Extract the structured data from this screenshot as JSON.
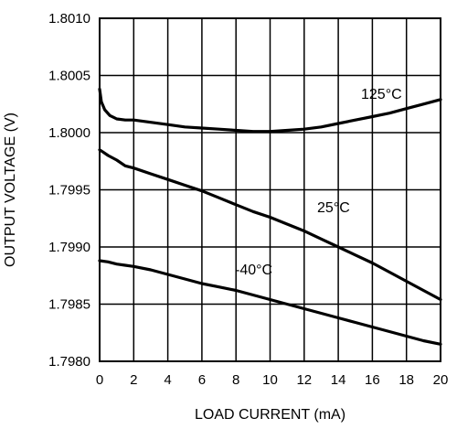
{
  "chart_data": {
    "type": "line",
    "xlabel": "LOAD CURRENT (mA)",
    "ylabel": "OUTPUT VOLTAGE (V)",
    "xlim": [
      0,
      20
    ],
    "ylim": [
      1.798,
      1.801
    ],
    "grid": true,
    "x_ticks": [
      "0",
      "2",
      "4",
      "6",
      "8",
      "10",
      "12",
      "14",
      "16",
      "18",
      "20"
    ],
    "y_ticks": [
      "1.8010",
      "1.8005",
      "1.8000",
      "1.7995",
      "1.7990",
      "1.7985",
      "1.7980"
    ],
    "series": [
      {
        "name": "125°C",
        "x": [
          0,
          0.1,
          0.3,
          0.6,
          1,
          1.5,
          2,
          3,
          4,
          5,
          6,
          7,
          8,
          9,
          10,
          11,
          12,
          13,
          14,
          15,
          16,
          17,
          18,
          19,
          20
        ],
        "y": [
          1.80038,
          1.80027,
          1.8002,
          1.80015,
          1.80012,
          1.80011,
          1.80011,
          1.80009,
          1.80007,
          1.80005,
          1.80004,
          1.80003,
          1.80002,
          1.80001,
          1.80001,
          1.80002,
          1.80003,
          1.80005,
          1.80008,
          1.80011,
          1.80014,
          1.80017,
          1.80021,
          1.80025,
          1.80029
        ]
      },
      {
        "name": "25°C",
        "x": [
          0,
          0.2,
          0.5,
          1,
          1.5,
          2,
          3,
          4,
          5,
          6,
          7,
          8,
          9,
          10,
          11,
          12,
          13,
          14,
          15,
          16,
          17,
          18,
          19,
          20
        ],
        "y": [
          1.79985,
          1.79983,
          1.7998,
          1.79976,
          1.79971,
          1.79969,
          1.79964,
          1.79959,
          1.79954,
          1.79949,
          1.79943,
          1.79937,
          1.79931,
          1.79926,
          1.7992,
          1.79914,
          1.79907,
          1.799,
          1.79893,
          1.79886,
          1.79878,
          1.7987,
          1.79862,
          1.79854
        ]
      },
      {
        "name": "-40°C",
        "x": [
          0,
          0.5,
          1,
          1.5,
          2,
          3,
          4,
          5,
          6,
          7,
          8,
          9,
          10,
          11,
          12,
          13,
          14,
          15,
          16,
          17,
          18,
          19,
          20
        ],
        "y": [
          1.79888,
          1.79887,
          1.79885,
          1.79884,
          1.79883,
          1.7988,
          1.79876,
          1.79872,
          1.79868,
          1.79865,
          1.79862,
          1.79858,
          1.79854,
          1.7985,
          1.79846,
          1.79842,
          1.79838,
          1.79834,
          1.7983,
          1.79826,
          1.79822,
          1.79818,
          1.79815
        ]
      }
    ],
    "annotations": [
      {
        "text": "125°C",
        "series": "125°C"
      },
      {
        "text": "25°C",
        "series": "25°C"
      },
      {
        "text": "-40°C",
        "series": "-40°C"
      }
    ]
  }
}
